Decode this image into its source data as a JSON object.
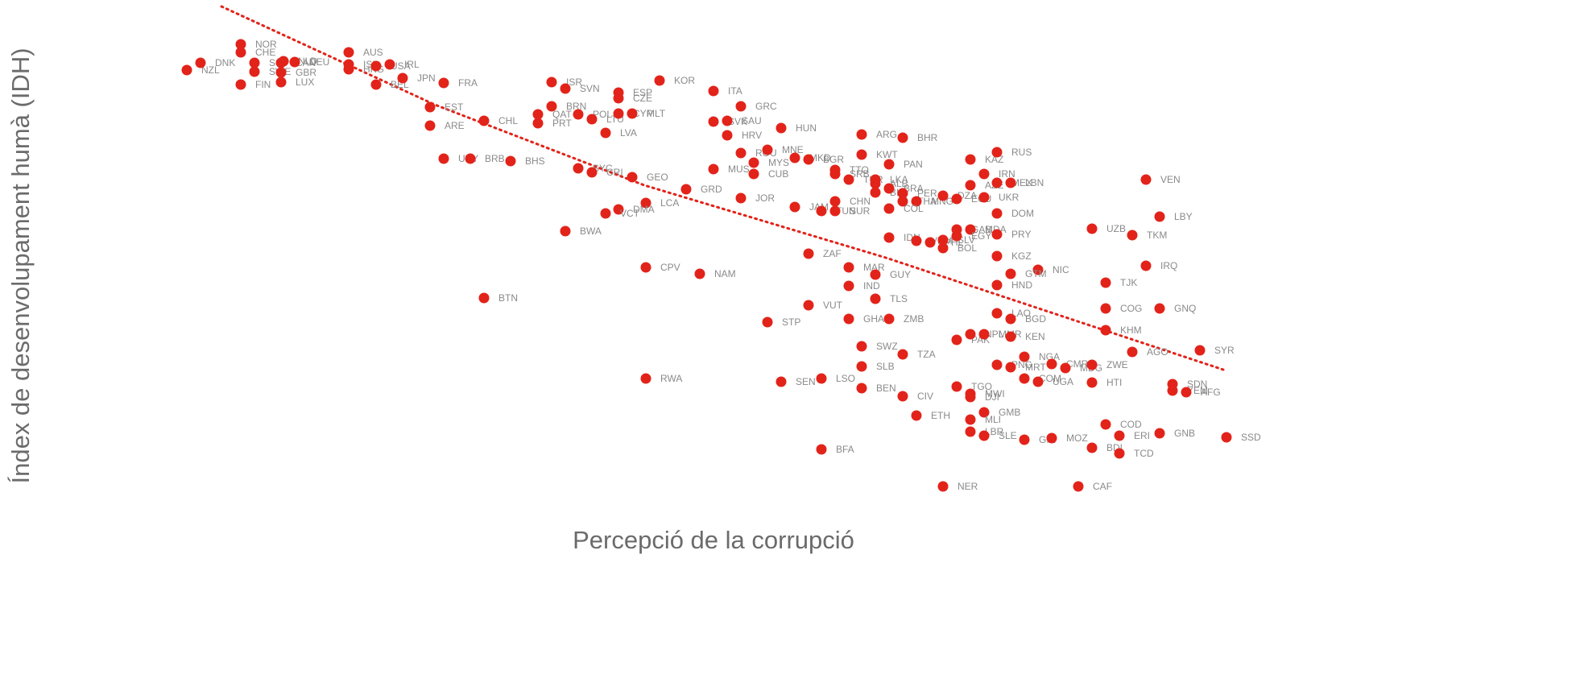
{
  "chart_data": {
    "type": "scatter",
    "x_label": "Percepció de la corrupció",
    "y_label": "Índex de desenvolupament humà (IDH)",
    "color": "#e2231a",
    "xlim": [
      0,
      140
    ],
    "ylim": [
      0,
      70
    ],
    "labels": [
      "NZL",
      "DNK",
      "NOR",
      "CHE",
      "FIN",
      "SGP",
      "SWE",
      "CAN",
      "NLD",
      "DEU",
      "GBR",
      "LUX",
      "AUS",
      "ISL",
      "HKG",
      "USA",
      "IRL",
      "BEL",
      "JPN",
      "FRA",
      "EST",
      "ARE",
      "CHL",
      "URY",
      "BRB",
      "BHS",
      "ISR",
      "SVN",
      "ESP",
      "CZE",
      "BRN",
      "QAT",
      "PRT",
      "POL",
      "LTU",
      "CYP",
      "MLT",
      "LVA",
      "KOR",
      "ITA",
      "GRC",
      "SVK",
      "SAU",
      "HRV",
      "HUN",
      "ROU",
      "MNE",
      "MYS",
      "MUS",
      "CUB",
      "MKD",
      "BGR",
      "SYC",
      "CRI",
      "GEO",
      "GRD",
      "LCA",
      "DMA",
      "VCT",
      "JOR",
      "BWA",
      "JAM",
      "TUN",
      "CHN",
      "SUR",
      "ARG",
      "BHR",
      "KWT",
      "PAN",
      "TTO",
      "SRB",
      "TUR",
      "LKA",
      "ALB",
      "BIH",
      "BRA",
      "PER",
      "THA",
      "MNG",
      "DZA",
      "ECU",
      "AZE",
      "KAZ",
      "RUS",
      "IRN",
      "MEX",
      "LBN",
      "UKR",
      "COL",
      "DOM",
      "IDN",
      "VNM",
      "PHL",
      "SLV",
      "BOL",
      "GAB",
      "MDA",
      "EGY",
      "PRY",
      "UZB",
      "TKM",
      "LBY",
      "VEN",
      "KGZ",
      "NIC",
      "GTM",
      "HND",
      "IRQ",
      "TJK",
      "COG",
      "GNQ",
      "KHM",
      "AGO",
      "SYR",
      "ZAF",
      "MAR",
      "GUY",
      "IND",
      "TLS",
      "VUT",
      "CPV",
      "NAM",
      "BTN",
      "STP",
      "GHA",
      "ZMB",
      "LAO",
      "BGD",
      "PAK",
      "NPL",
      "MMR",
      "KEN",
      "SWZ",
      "TZA",
      "SLB",
      "NGA",
      "PNG",
      "MRT",
      "CMR",
      "MDG",
      "ZWE",
      "COM",
      "UGA",
      "HTI",
      "SDN",
      "YEM",
      "AFG",
      "RWA",
      "SEN",
      "LSO",
      "BEN",
      "CIV",
      "TGO",
      "MWI",
      "DJI",
      "ETH",
      "GMB",
      "MLI",
      "LBR",
      "SLE",
      "GIN",
      "MOZ",
      "COD",
      "ERI",
      "GNB",
      "SSD",
      "BDI",
      "TCD",
      "BFA",
      "NER",
      "CAF"
    ],
    "x": [
      3.2,
      4.9,
      9.9,
      9.9,
      9.9,
      11.6,
      11.6,
      14.9,
      15.2,
      16.6,
      14.9,
      14.9,
      23.3,
      23.3,
      23.3,
      26.7,
      28.4,
      26.7,
      30.0,
      35.1,
      33.4,
      33.4,
      40.1,
      35.1,
      38.4,
      43.4,
      48.5,
      50.2,
      56.8,
      56.8,
      48.5,
      46.8,
      46.8,
      51.8,
      53.5,
      56.8,
      58.5,
      55.2,
      61.9,
      68.6,
      72.0,
      68.6,
      70.3,
      70.3,
      77.0,
      72.0,
      75.3,
      73.6,
      68.6,
      73.6,
      78.7,
      80.4,
      51.8,
      53.5,
      58.5,
      65.2,
      60.2,
      56.8,
      55.2,
      72.0,
      50.2,
      78.7,
      82.0,
      83.7,
      83.7,
      87.0,
      92.1,
      87.0,
      90.4,
      83.7,
      83.7,
      85.4,
      88.7,
      88.7,
      88.7,
      90.4,
      92.1,
      92.1,
      93.8,
      97.1,
      98.8,
      100.5,
      100.5,
      103.8,
      102.2,
      103.8,
      105.5,
      102.2,
      90.4,
      103.8,
      90.4,
      93.8,
      95.5,
      97.1,
      97.1,
      98.8,
      100.5,
      98.8,
      103.8,
      115.6,
      120.6,
      124.0,
      122.3,
      103.8,
      108.9,
      105.5,
      103.8,
      122.3,
      117.3,
      117.3,
      124.0,
      117.3,
      120.6,
      129.0,
      80.4,
      85.4,
      88.7,
      85.4,
      88.7,
      80.4,
      60.2,
      66.9,
      40.1,
      75.3,
      85.4,
      90.4,
      103.8,
      105.5,
      98.8,
      100.5,
      102.2,
      105.5,
      87.0,
      92.1,
      87.0,
      107.2,
      103.8,
      105.5,
      110.6,
      112.3,
      115.6,
      107.2,
      108.9,
      115.6,
      125.6,
      125.6,
      127.3,
      60.2,
      77.0,
      82.0,
      87.0,
      92.1,
      98.8,
      100.5,
      100.5,
      93.8,
      102.2,
      100.5,
      100.5,
      102.2,
      107.2,
      110.6,
      117.3,
      119.0,
      124.0,
      132.3,
      115.6,
      119.0,
      82.0,
      97.1,
      113.9
    ],
    "values": [
      61.3,
      62.2,
      64.5,
      63.5,
      59.5,
      62.2,
      61.1,
      62.2,
      62.4,
      62.3,
      61.0,
      59.8,
      63.5,
      62.0,
      61.4,
      61.8,
      62.0,
      59.5,
      60.3,
      59.7,
      56.7,
      54.4,
      55.0,
      50.3,
      50.3,
      50.0,
      59.8,
      59.0,
      58.5,
      57.8,
      56.8,
      55.8,
      54.7,
      55.8,
      55.2,
      55.9,
      55.9,
      53.5,
      60.0,
      58.7,
      56.8,
      54.9,
      55.0,
      53.2,
      54.1,
      51.0,
      51.4,
      49.8,
      49.0,
      48.4,
      50.4,
      50.2,
      49.1,
      48.6,
      48.0,
      46.5,
      44.8,
      44.0,
      43.5,
      45.4,
      41.3,
      44.3,
      43.8,
      45.0,
      43.8,
      53.3,
      52.9,
      50.8,
      49.6,
      48.9,
      48.4,
      47.7,
      47.7,
      47.2,
      46.1,
      46.6,
      46.0,
      45.0,
      45.0,
      45.7,
      45.3,
      47.0,
      50.2,
      51.1,
      48.4,
      47.3,
      47.3,
      45.5,
      44.1,
      43.5,
      40.5,
      40.1,
      39.9,
      40.2,
      39.2,
      41.5,
      41.5,
      40.7,
      40.9,
      41.6,
      40.8,
      43.1,
      47.7,
      38.2,
      36.5,
      36.0,
      34.6,
      37.0,
      34.9,
      31.7,
      31.7,
      29.0,
      26.3,
      26.5,
      38.5,
      36.8,
      35.9,
      34.5,
      32.9,
      32.1,
      36.8,
      36.0,
      33.0,
      30.0,
      30.4,
      30.4,
      31.1,
      30.4,
      27.8,
      28.5,
      28.5,
      28.2,
      27.0,
      26.0,
      24.5,
      25.7,
      24.7,
      24.4,
      24.8,
      24.3,
      24.7,
      23.0,
      22.6,
      22.5,
      22.3,
      21.5,
      21.3,
      23.0,
      22.6,
      23.0,
      21.8,
      20.8,
      22.0,
      21.1,
      20.7,
      18.4,
      18.8,
      17.9,
      16.4,
      15.9,
      15.4,
      15.6,
      17.3,
      15.9,
      16.2,
      15.7,
      14.4,
      13.7,
      14.2,
      9.6,
      9.6
    ],
    "trendline": {
      "color": "#e2231a",
      "x": [
        7.5,
        34,
        60,
        90,
        132.2
      ],
      "values": [
        69.2,
        57,
        47,
        38,
        24
      ]
    }
  }
}
